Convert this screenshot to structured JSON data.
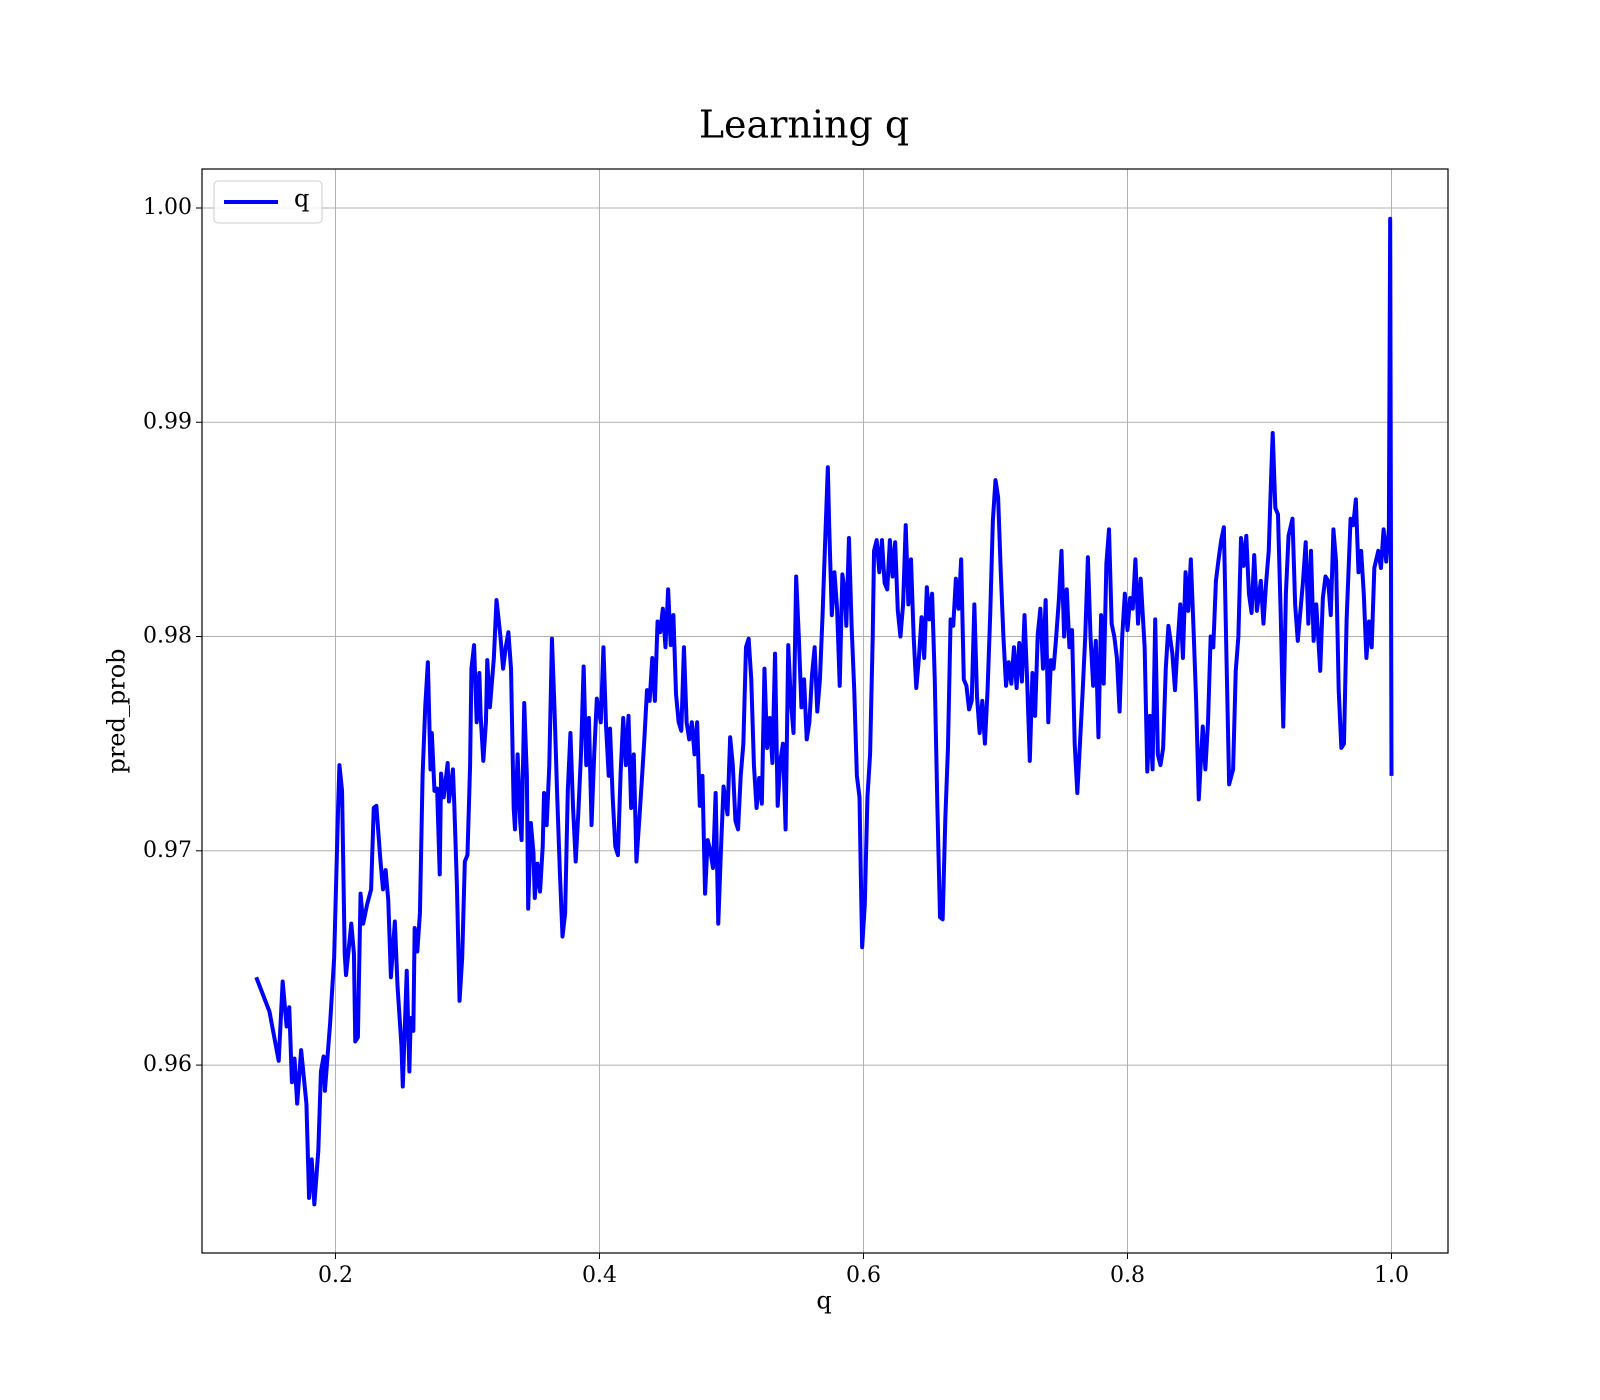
{
  "chart_data": {
    "type": "line",
    "title": "Learning q",
    "xlabel": "q",
    "ylabel": "pred_prob",
    "x": [
      0.14,
      0.15,
      0.157,
      0.16,
      0.163,
      0.165,
      0.167,
      0.169,
      0.171,
      0.174,
      0.178,
      0.18,
      0.182,
      0.184,
      0.187,
      0.189,
      0.191,
      0.192,
      0.196,
      0.199,
      0.202,
      0.203,
      0.205,
      0.207,
      0.208,
      0.211,
      0.212,
      0.214,
      0.215,
      0.217,
      0.219,
      0.221,
      0.224,
      0.227,
      0.229,
      0.231,
      0.234,
      0.236,
      0.238,
      0.24,
      0.242,
      0.245,
      0.247,
      0.25,
      0.251,
      0.254,
      0.256,
      0.257,
      0.259,
      0.26,
      0.262,
      0.264,
      0.266,
      0.268,
      0.27,
      0.272,
      0.273,
      0.275,
      0.277,
      0.279,
      0.28,
      0.282,
      0.285,
      0.286,
      0.289,
      0.29,
      0.292,
      0.294,
      0.296,
      0.298,
      0.3,
      0.302,
      0.303,
      0.305,
      0.307,
      0.309,
      0.31,
      0.312,
      0.314,
      0.315,
      0.317,
      0.32,
      0.322,
      0.325,
      0.327,
      0.329,
      0.331,
      0.333,
      0.335,
      0.336,
      0.338,
      0.34,
      0.341,
      0.343,
      0.345,
      0.346,
      0.348,
      0.35,
      0.351,
      0.353,
      0.355,
      0.357,
      0.358,
      0.36,
      0.362,
      0.364,
      0.366,
      0.368,
      0.37,
      0.372,
      0.374,
      0.376,
      0.378,
      0.38,
      0.382,
      0.384,
      0.386,
      0.388,
      0.39,
      0.392,
      0.394,
      0.396,
      0.398,
      0.401,
      0.403,
      0.405,
      0.407,
      0.408,
      0.41,
      0.412,
      0.414,
      0.416,
      0.418,
      0.42,
      0.422,
      0.424,
      0.426,
      0.428,
      0.43,
      0.432,
      0.434,
      0.436,
      0.438,
      0.44,
      0.442,
      0.444,
      0.446,
      0.448,
      0.45,
      0.452,
      0.454,
      0.456,
      0.458,
      0.46,
      0.462,
      0.464,
      0.466,
      0.468,
      0.47,
      0.472,
      0.474,
      0.476,
      0.478,
      0.48,
      0.482,
      0.484,
      0.486,
      0.488,
      0.49,
      0.492,
      0.494,
      0.497,
      0.499,
      0.501,
      0.503,
      0.505,
      0.507,
      0.509,
      0.511,
      0.513,
      0.515,
      0.517,
      0.519,
      0.521,
      0.523,
      0.525,
      0.527,
      0.529,
      0.531,
      0.533,
      0.535,
      0.537,
      0.539,
      0.541,
      0.543,
      0.545,
      0.547,
      0.549,
      0.551,
      0.553,
      0.555,
      0.557,
      0.559,
      0.561,
      0.563,
      0.565,
      0.567,
      0.569,
      0.571,
      0.573,
      0.574,
      0.576,
      0.578,
      0.58,
      0.582,
      0.584,
      0.586,
      0.587,
      0.589,
      0.591,
      0.593,
      0.595,
      0.597,
      0.598,
      0.599,
      0.601,
      0.603,
      0.605,
      0.607,
      0.608,
      0.61,
      0.612,
      0.614,
      0.616,
      0.618,
      0.62,
      0.622,
      0.624,
      0.626,
      0.628,
      0.63,
      0.632,
      0.634,
      0.636,
      0.638,
      0.64,
      0.642,
      0.644,
      0.646,
      0.648,
      0.65,
      0.652,
      0.654,
      0.656,
      0.658,
      0.66,
      0.662,
      0.664,
      0.666,
      0.668,
      0.67,
      0.672,
      0.674,
      0.676,
      0.678,
      0.68,
      0.682,
      0.684,
      0.686,
      0.688,
      0.69,
      0.692,
      0.694,
      0.696,
      0.698,
      0.7,
      0.702,
      0.704,
      0.706,
      0.708,
      0.71,
      0.712,
      0.714,
      0.716,
      0.718,
      0.72,
      0.722,
      0.724,
      0.726,
      0.728,
      0.73,
      0.732,
      0.734,
      0.736,
      0.738,
      0.74,
      0.742,
      0.744,
      0.746,
      0.748,
      0.75,
      0.752,
      0.754,
      0.756,
      0.758,
      0.76,
      0.762,
      0.764,
      0.766,
      0.768,
      0.77,
      0.772,
      0.774,
      0.776,
      0.778,
      0.78,
      0.782,
      0.784,
      0.786,
      0.788,
      0.79,
      0.792,
      0.794,
      0.796,
      0.798,
      0.8,
      0.802,
      0.804,
      0.806,
      0.808,
      0.81,
      0.813,
      0.815,
      0.817,
      0.819,
      0.821,
      0.823,
      0.825,
      0.827,
      0.829,
      0.831,
      0.834,
      0.836,
      0.838,
      0.84,
      0.842,
      0.844,
      0.846,
      0.848,
      0.85,
      0.852,
      0.854,
      0.857,
      0.859,
      0.861,
      0.863,
      0.865,
      0.867,
      0.869,
      0.871,
      0.873,
      0.875,
      0.877,
      0.88,
      0.882,
      0.884,
      0.886,
      0.888,
      0.89,
      0.892,
      0.894,
      0.896,
      0.898,
      0.901,
      0.903,
      0.905,
      0.907,
      0.909,
      0.91,
      0.912,
      0.914,
      0.916,
      0.918,
      0.92,
      0.922,
      0.925,
      0.927,
      0.929,
      0.931,
      0.933,
      0.935,
      0.937,
      0.939,
      0.941,
      0.943,
      0.946,
      0.948,
      0.95,
      0.952,
      0.954,
      0.956,
      0.958,
      0.96,
      0.962,
      0.964,
      0.966,
      0.969,
      0.971,
      0.973,
      0.975,
      0.977,
      0.979,
      0.981,
      0.983,
      0.985,
      0.987,
      0.99,
      0.992,
      0.994,
      0.996,
      0.998,
      0.999,
      1.0
    ],
    "series": [
      {
        "name": "q",
        "color": "#0000ff",
        "values": [
          0.9641,
          0.9625,
          0.9602,
          0.9639,
          0.9618,
          0.9627,
          0.9592,
          0.9603,
          0.9582,
          0.9607,
          0.9582,
          0.9538,
          0.9556,
          0.9535,
          0.956,
          0.9597,
          0.9604,
          0.9588,
          0.962,
          0.965,
          0.972,
          0.974,
          0.9728,
          0.9652,
          0.9642,
          0.966,
          0.9666,
          0.9652,
          0.9611,
          0.9613,
          0.968,
          0.9666,
          0.9675,
          0.9682,
          0.972,
          0.9721,
          0.9696,
          0.9682,
          0.9691,
          0.9677,
          0.9641,
          0.9667,
          0.9637,
          0.9609,
          0.959,
          0.9644,
          0.9597,
          0.9622,
          0.9616,
          0.9664,
          0.9653,
          0.9671,
          0.9735,
          0.9767,
          0.9788,
          0.9738,
          0.9755,
          0.9728,
          0.9729,
          0.9689,
          0.9736,
          0.9725,
          0.9741,
          0.9723,
          0.9738,
          0.9722,
          0.9684,
          0.963,
          0.965,
          0.9695,
          0.9698,
          0.974,
          0.9785,
          0.9796,
          0.976,
          0.9783,
          0.9763,
          0.9742,
          0.976,
          0.9789,
          0.9767,
          0.979,
          0.9817,
          0.98,
          0.9785,
          0.9795,
          0.9802,
          0.9785,
          0.972,
          0.971,
          0.9745,
          0.9713,
          0.9705,
          0.9769,
          0.9735,
          0.9673,
          0.9713,
          0.9699,
          0.9678,
          0.9694,
          0.9681,
          0.9702,
          0.9727,
          0.9712,
          0.974,
          0.9799,
          0.9765,
          0.9725,
          0.969,
          0.966,
          0.9671,
          0.9728,
          0.9755,
          0.972,
          0.9695,
          0.9718,
          0.9745,
          0.9786,
          0.974,
          0.9762,
          0.9712,
          0.9745,
          0.9771,
          0.976,
          0.9795,
          0.9758,
          0.9735,
          0.9757,
          0.9725,
          0.9702,
          0.9698,
          0.9736,
          0.9762,
          0.974,
          0.9763,
          0.972,
          0.9745,
          0.9695,
          0.9713,
          0.9732,
          0.9752,
          0.9775,
          0.977,
          0.979,
          0.977,
          0.9807,
          0.9802,
          0.9813,
          0.9795,
          0.9822,
          0.9796,
          0.981,
          0.9773,
          0.976,
          0.9756,
          0.9795,
          0.976,
          0.9752,
          0.976,
          0.9745,
          0.976,
          0.9721,
          0.9735,
          0.968,
          0.9705,
          0.97,
          0.9692,
          0.9727,
          0.9666,
          0.97,
          0.973,
          0.9717,
          0.9753,
          0.974,
          0.9714,
          0.971,
          0.9735,
          0.975,
          0.9795,
          0.9799,
          0.978,
          0.974,
          0.972,
          0.9734,
          0.9722,
          0.9785,
          0.9748,
          0.9762,
          0.9741,
          0.9792,
          0.9721,
          0.9742,
          0.975,
          0.971,
          0.9796,
          0.977,
          0.9755,
          0.9828,
          0.98,
          0.9767,
          0.978,
          0.9752,
          0.976,
          0.9782,
          0.9795,
          0.9765,
          0.978,
          0.981,
          0.9845,
          0.9879,
          0.9852,
          0.981,
          0.983,
          0.9813,
          0.9777,
          0.9829,
          0.982,
          0.9805,
          0.9846,
          0.9805,
          0.9775,
          0.9735,
          0.9725,
          0.9688,
          0.9655,
          0.9675,
          0.9725,
          0.9745,
          0.98,
          0.984,
          0.9845,
          0.983,
          0.9845,
          0.9825,
          0.9822,
          0.9845,
          0.9828,
          0.9844,
          0.9812,
          0.98,
          0.9815,
          0.9852,
          0.9815,
          0.9836,
          0.98,
          0.9776,
          0.979,
          0.9809,
          0.979,
          0.9823,
          0.9808,
          0.982,
          0.978,
          0.972,
          0.9669,
          0.9668,
          0.9715,
          0.9748,
          0.9808,
          0.9805,
          0.9827,
          0.9813,
          0.9836,
          0.978,
          0.9777,
          0.9766,
          0.977,
          0.9815,
          0.9772,
          0.9755,
          0.977,
          0.975,
          0.9775,
          0.981,
          0.9854,
          0.9873,
          0.9865,
          0.983,
          0.98,
          0.9777,
          0.9788,
          0.9778,
          0.9795,
          0.9776,
          0.9797,
          0.9779,
          0.981,
          0.9779,
          0.9742,
          0.9783,
          0.9763,
          0.9801,
          0.9813,
          0.9785,
          0.9817,
          0.976,
          0.9789,
          0.9785,
          0.98,
          0.9817,
          0.984,
          0.98,
          0.9822,
          0.9795,
          0.9803,
          0.975,
          0.9727,
          0.975,
          0.9774,
          0.98,
          0.9837,
          0.98,
          0.9777,
          0.9798,
          0.9753,
          0.981,
          0.9778,
          0.9834,
          0.985,
          0.9806,
          0.98,
          0.979,
          0.9765,
          0.98,
          0.982,
          0.9803,
          0.9818,
          0.9813,
          0.9836,
          0.9806,
          0.9827,
          0.9795,
          0.9737,
          0.9763,
          0.9738,
          0.9808,
          0.9745,
          0.974,
          0.9748,
          0.9785,
          0.9805,
          0.9792,
          0.9775,
          0.9797,
          0.9815,
          0.979,
          0.983,
          0.9812,
          0.9836,
          0.9804,
          0.977,
          0.9724,
          0.9758,
          0.9738,
          0.976,
          0.98,
          0.9795,
          0.9826,
          0.9836,
          0.9845,
          0.9851,
          0.979,
          0.9731,
          0.9738,
          0.9784,
          0.98,
          0.9846,
          0.9833,
          0.9847,
          0.982,
          0.9811,
          0.9838,
          0.9812,
          0.9826,
          0.9806,
          0.9825,
          0.984,
          0.9878,
          0.9895,
          0.986,
          0.9857,
          0.9812,
          0.9758,
          0.982,
          0.9847,
          0.9855,
          0.9815,
          0.9798,
          0.9812,
          0.9826,
          0.9844,
          0.9806,
          0.984,
          0.9798,
          0.9815,
          0.9784,
          0.9818,
          0.9828,
          0.9826,
          0.981,
          0.985,
          0.9835,
          0.9775,
          0.9748,
          0.975,
          0.9808,
          0.9855,
          0.9852,
          0.9864,
          0.983,
          0.984,
          0.982,
          0.979,
          0.9807,
          0.9795,
          0.9832,
          0.984,
          0.9832,
          0.985,
          0.9835,
          0.985,
          0.9995,
          0.9735
        ]
      }
    ],
    "xlim": [
      0.0989,
      1.0428
    ],
    "xticks": [
      0.2,
      0.4,
      0.6,
      0.8,
      {
        "value": 1.0,
        "label": "1.0"
      }
    ],
    "ylim": [
      0.95123,
      1.00182
    ],
    "yticks": [
      0.96,
      0.97,
      0.98,
      0.99,
      {
        "value": 1.0,
        "label": "1.00"
      }
    ],
    "grid": true,
    "legend": "upper-left"
  }
}
